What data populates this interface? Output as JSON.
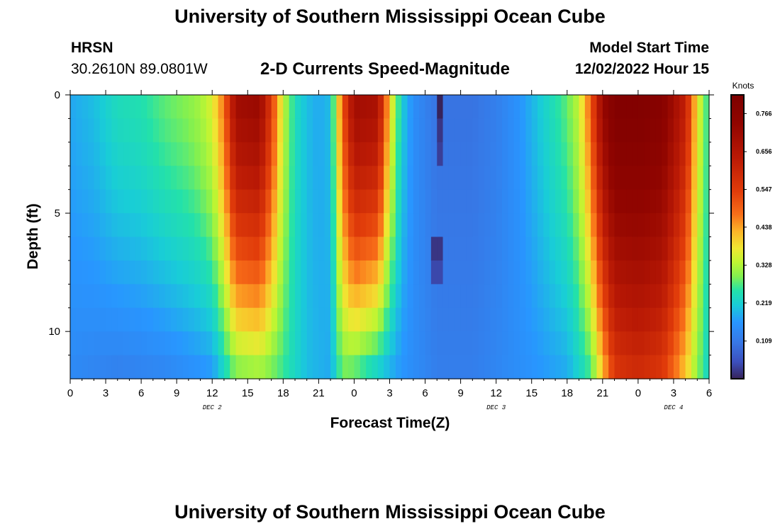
{
  "title": "University of Southern Mississippi Ocean Cube",
  "title_repeat": "University of Southern Mississippi Ocean Cube",
  "station": "HRSN",
  "coordinates": "30.2610N  89.0801W",
  "subtitle": "2-D Currents Speed-Magnitude",
  "model_start_label": "Model Start Time",
  "model_start_value": "12/02/2022 Hour 15",
  "chart_data": {
    "type": "heatmap",
    "xlabel": "Forecast Time(Z)",
    "ylabel": "Depth (ft)",
    "x_ticks": [
      "0",
      "3",
      "6",
      "9",
      "12",
      "15",
      "18",
      "21",
      "0",
      "3",
      "6",
      "9",
      "12",
      "15",
      "18",
      "21",
      "0",
      "3",
      "6"
    ],
    "date_labels": [
      {
        "label": "DEC 2",
        "hour": 12
      },
      {
        "label": "DEC 3",
        "hour": 36
      },
      {
        "label": "DEC 4",
        "hour": 51
      }
    ],
    "y_ticks": [
      "0",
      "5",
      "10"
    ],
    "xlim_hours": [
      0,
      54
    ],
    "ylim_ft": [
      0,
      12
    ],
    "colorbar": {
      "title": "Knots",
      "ticks": [
        "0.766",
        "0.656",
        "0.547",
        "0.438",
        "0.328",
        "0.219",
        "0.109"
      ],
      "range": [
        0.0,
        0.82
      ]
    },
    "time_step_hours": 0.5,
    "depth_step_ft": 1,
    "speed_profile_surface_knots": [
      [
        0,
        0.18
      ],
      [
        2,
        0.2
      ],
      [
        4,
        0.24
      ],
      [
        6,
        0.25
      ],
      [
        8,
        0.28
      ],
      [
        10,
        0.3
      ],
      [
        11,
        0.32
      ],
      [
        12,
        0.36
      ],
      [
        13,
        0.48
      ],
      [
        14,
        0.7
      ],
      [
        16,
        0.72
      ],
      [
        17,
        0.55
      ],
      [
        18,
        0.34
      ],
      [
        19,
        0.24
      ],
      [
        20,
        0.2
      ],
      [
        21,
        0.18
      ],
      [
        22,
        0.2
      ],
      [
        23,
        0.5
      ],
      [
        24,
        0.7
      ],
      [
        26,
        0.68
      ],
      [
        27,
        0.4
      ],
      [
        28,
        0.22
      ],
      [
        29,
        0.15
      ],
      [
        31,
        0.1
      ],
      [
        34,
        0.1
      ],
      [
        36,
        0.12
      ],
      [
        38,
        0.16
      ],
      [
        40,
        0.22
      ],
      [
        42,
        0.28
      ],
      [
        43,
        0.34
      ],
      [
        44,
        0.5
      ],
      [
        45,
        0.72
      ],
      [
        46,
        0.8
      ],
      [
        48,
        0.8
      ],
      [
        50,
        0.78
      ],
      [
        52,
        0.62
      ],
      [
        53,
        0.38
      ],
      [
        54,
        0.24
      ]
    ],
    "speed_profile_bottom_knots": [
      [
        0,
        0.14
      ],
      [
        4,
        0.12
      ],
      [
        8,
        0.13
      ],
      [
        12,
        0.16
      ],
      [
        13,
        0.22
      ],
      [
        14,
        0.28
      ],
      [
        16,
        0.3
      ],
      [
        18,
        0.26
      ],
      [
        20,
        0.2
      ],
      [
        22,
        0.18
      ],
      [
        23,
        0.28
      ],
      [
        24,
        0.26
      ],
      [
        26,
        0.2
      ],
      [
        28,
        0.16
      ],
      [
        31,
        0.12
      ],
      [
        34,
        0.12
      ],
      [
        38,
        0.15
      ],
      [
        42,
        0.18
      ],
      [
        44,
        0.26
      ],
      [
        45,
        0.4
      ],
      [
        46,
        0.55
      ],
      [
        48,
        0.58
      ],
      [
        50,
        0.55
      ],
      [
        52,
        0.4
      ],
      [
        53,
        0.3
      ],
      [
        54,
        0.22
      ]
    ],
    "anomaly_cells": [
      {
        "hour": 31,
        "depth_ft": 0,
        "speed_knots": 0.0
      },
      {
        "hour": 31,
        "depth_ft": 1,
        "speed_knots": 0.02
      },
      {
        "hour": 31,
        "depth_ft": 2,
        "speed_knots": 0.03
      },
      {
        "hour": 30.5,
        "depth_ft": 6,
        "speed_knots": 0.02
      },
      {
        "hour": 31,
        "depth_ft": 6,
        "speed_knots": 0.02
      },
      {
        "hour": 30.5,
        "depth_ft": 7,
        "speed_knots": 0.04
      },
      {
        "hour": 31,
        "depth_ft": 7,
        "speed_knots": 0.04
      }
    ]
  }
}
